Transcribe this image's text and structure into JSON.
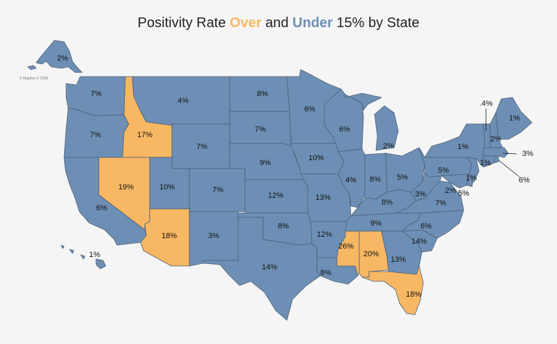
{
  "title": {
    "prefix": "Positivity Rate ",
    "over": "Over",
    "middle": " and ",
    "under": "Under",
    "suffix": " 15% by State"
  },
  "attribution": "© Mapbox © OSM",
  "colors": {
    "over": "#f7b763",
    "under": "#6e8fb5",
    "border": "#4a5e78",
    "background": "#f5f5f5"
  },
  "threshold_percent": 15,
  "labels": {
    "AK": "2%",
    "HI": "1%",
    "WA": "7%",
    "OR": "7%",
    "CA": "6%",
    "ID": "17%",
    "NV": "19%",
    "MT": "4%",
    "WY": "7%",
    "UT": "10%",
    "AZ": "18%",
    "CO": "7%",
    "NM": "3%",
    "ND": "8%",
    "SD": "7%",
    "NE": "9%",
    "KS": "12%",
    "OK": "8%",
    "TX": "14%",
    "MN": "6%",
    "IA": "10%",
    "MO": "13%",
    "AR": "12%",
    "LA": "8%",
    "WI": "6%",
    "IL": "4%",
    "MI": "2%",
    "IN": "8%",
    "OH": "5%",
    "KY": "8%",
    "TN": "9%",
    "MS": "26%",
    "AL": "20%",
    "GA": "13%",
    "FL": "18%",
    "SC": "14%",
    "NC": "6%",
    "VA": "7%",
    "WV": "3%",
    "PA": "5%",
    "NY": "1%",
    "ME": "1%",
    "NH": "2%",
    "VT": ".4%",
    "MA": "3%",
    "RI": "6%",
    "CT": "1%",
    "NJ": "1%",
    "DE": "5%",
    "MD": "2%"
  }
}
